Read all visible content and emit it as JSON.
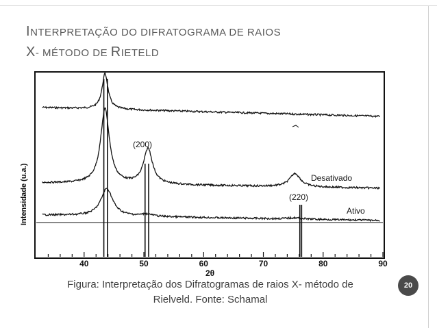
{
  "slide": {
    "title_line1_first": "I",
    "title_line1_rest": "NTERPRETAÇÃO DO DIFRATOGRAMA DE RAIOS",
    "title_line2_first": "X",
    "title_line2_mid": "- MÉTODO DE ",
    "title_line2_r": "R",
    "title_line2_rest": "IETELD",
    "caption_line1": "Figura: Interpretação dos Difratogramas de raios X- método de",
    "caption_line2": "Rielveld. Fonte: Schamal",
    "page_number": "20"
  },
  "chart_data": {
    "type": "line",
    "ylabel": "Intensidade (u.a.)",
    "xlabel": "2θ",
    "x_ticks": [
      "40",
      "50",
      "60",
      "70",
      "80",
      "90"
    ],
    "xlim": [
      32,
      90
    ],
    "series": [
      {
        "name": "",
        "label": "",
        "peaks": [
          {
            "x": 43.5,
            "height": 1.0
          }
        ]
      },
      {
        "name": "Desativado",
        "label": "Desativado",
        "peaks": [
          {
            "x": 43.5,
            "height": 0.95
          },
          {
            "x": 50.7,
            "height": 0.45
          },
          {
            "x": 75.3,
            "height": 0.17
          }
        ]
      },
      {
        "name": "Ativo",
        "label": "Ativo",
        "peaks": [
          {
            "x": 43.8,
            "height": 0.65
          },
          {
            "x": 50.5,
            "height": 0.05
          },
          {
            "x": 75.2,
            "height": 0.03
          }
        ]
      }
    ],
    "annotations": [
      "(200)",
      "(220)"
    ],
    "reference_lines": [
      43.3,
      43.9,
      50.2,
      50.8,
      76.1,
      76.4
    ]
  }
}
